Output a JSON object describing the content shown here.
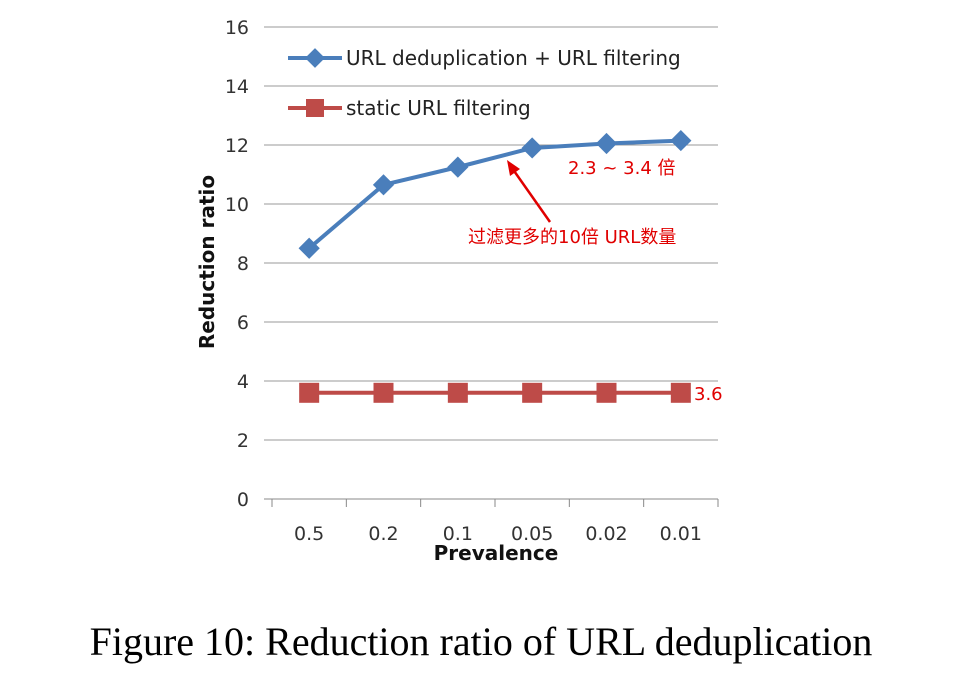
{
  "chart_data": {
    "type": "line",
    "categories": [
      "0.5",
      "0.2",
      "0.1",
      "0.05",
      "0.02",
      "0.01"
    ],
    "xlabel": "Prevalence",
    "ylabel": "Reduction ratio",
    "ylim": [
      0,
      16
    ],
    "yticks": [
      0,
      2,
      4,
      6,
      8,
      10,
      12,
      14,
      16
    ],
    "grid": "horizontal",
    "legend": "top",
    "series": [
      {
        "name": "URL deduplication + URL filtering",
        "values": [
          8.5,
          10.65,
          11.25,
          11.9,
          12.05,
          12.15
        ],
        "color": "#4a7ebb",
        "marker": "diamond"
      },
      {
        "name": "static URL filtering",
        "values": [
          3.6,
          3.6,
          3.6,
          3.6,
          3.6,
          3.6
        ],
        "color": "#be4b48",
        "marker": "square"
      }
    ],
    "annotations": {
      "range_label": "2.3 ~ 3.4 倍",
      "arrow_label": "过滤更多的10倍 URL数量",
      "static_value_label": "3.6",
      "color": "#e00000"
    }
  },
  "caption": "Figure 10: Reduction ratio of URL deduplication"
}
